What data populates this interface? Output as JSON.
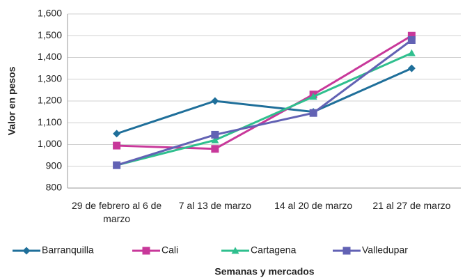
{
  "chart_data": {
    "type": "line",
    "x_label": "Semanas y mercados",
    "y_label": "Valor en pesos",
    "categories": [
      "29 de febrero al 6 de marzo",
      "7 al 13 de marzo",
      "14 al 20 de marzo",
      "21 al 27 de marzo"
    ],
    "series": [
      {
        "name": "Barranquilla",
        "color": "#1f6f9a",
        "marker": "diamond",
        "values": [
          1050,
          1200,
          1150,
          1350
        ]
      },
      {
        "name": "Cali",
        "color": "#c8389a",
        "marker": "square",
        "values": [
          995,
          980,
          1230,
          1500
        ]
      },
      {
        "name": "Cartagena",
        "color": "#2fbf8e",
        "marker": "triangle",
        "values": [
          905,
          1020,
          1220,
          1420
        ]
      },
      {
        "name": "Valledupar",
        "color": "#6262b4",
        "marker": "square",
        "values": [
          905,
          1045,
          1145,
          1480
        ]
      }
    ],
    "ylim": [
      800,
      1600
    ],
    "yticks": [
      800,
      900,
      {
        "value": 1000,
        "label": "1,000"
      },
      {
        "value": 1100,
        "label": "1,100"
      },
      {
        "value": 1200,
        "label": "1,200"
      },
      {
        "value": 1300,
        "label": "1,300"
      },
      {
        "value": 1400,
        "label": "1,400"
      },
      {
        "value": 1500,
        "label": "1,500"
      },
      {
        "value": 1600,
        "label": "1,600"
      }
    ],
    "grid": true,
    "legend": "bottom"
  }
}
